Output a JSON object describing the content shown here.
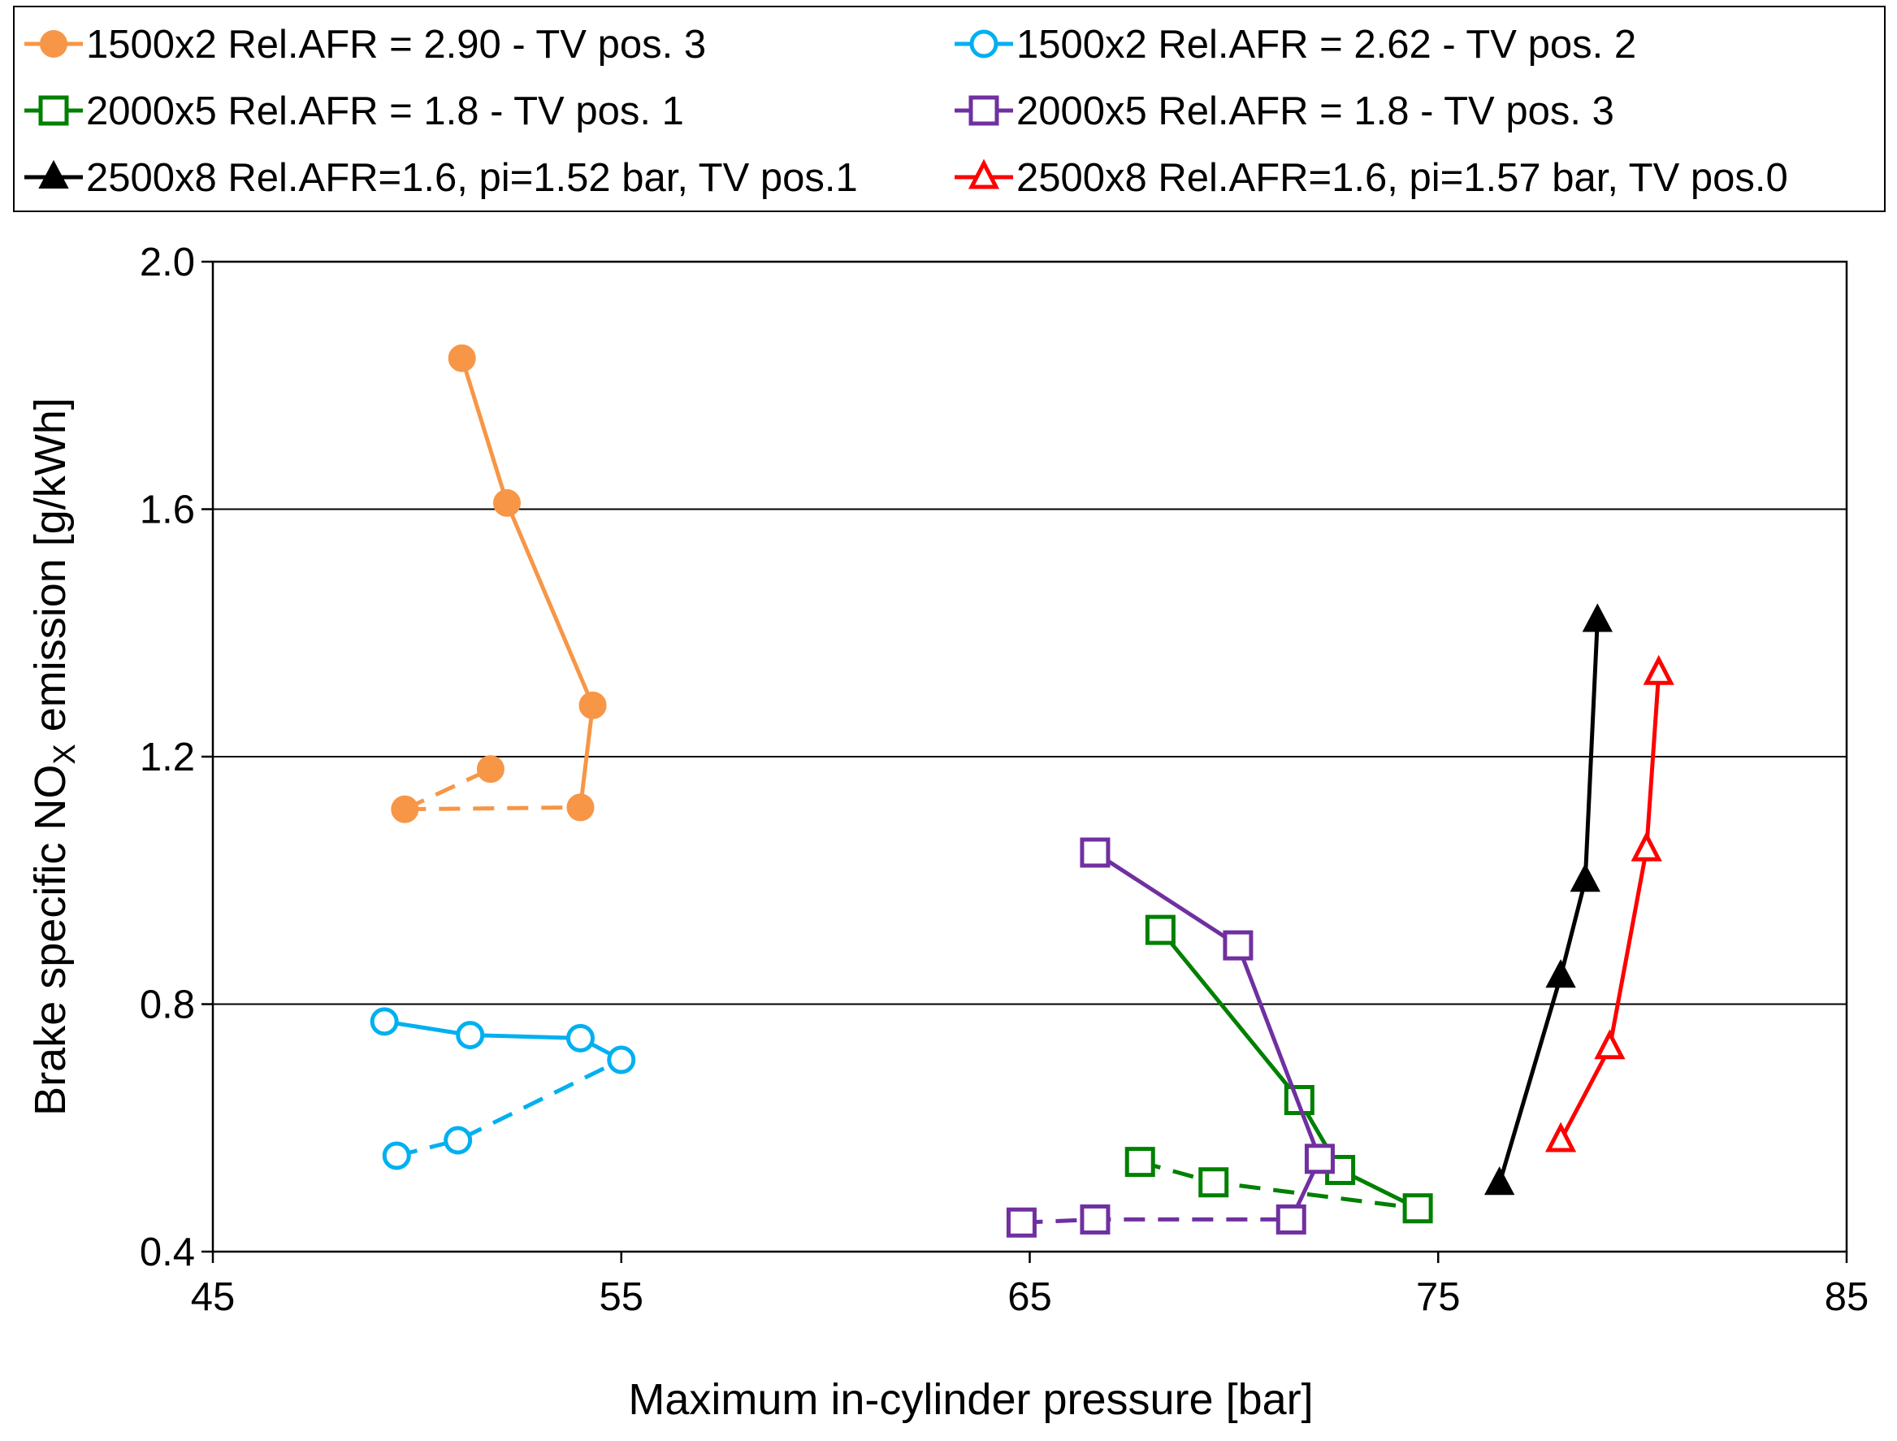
{
  "chart_data": {
    "type": "line",
    "title": "",
    "xlabel": "Maximum in-cylinder pressure [bar]",
    "ylabel": "Brake specific NOX emission [g/kWh]",
    "ylabel_parts": {
      "before": "Brake specific NO",
      "sub": "X",
      "after": " emission [g/kWh]"
    },
    "xlim": [
      45,
      85
    ],
    "ylim": [
      0.4,
      2.0
    ],
    "xticks": [
      45,
      55,
      65,
      75,
      85
    ],
    "yticks": [
      0.4,
      0.8,
      1.2,
      1.6,
      2.0
    ],
    "xtick_labels": [
      "45",
      "55",
      "65",
      "75",
      "85"
    ],
    "ytick_labels": [
      "0.4",
      "0.8",
      "1.2",
      "1.6",
      "2.0"
    ],
    "grid": "horizontal",
    "legend_position": "top",
    "series": [
      {
        "name": "1500x2 Rel.AFR = 2.90 - TV pos. 3",
        "color": "#F79646",
        "marker": "circle-filled",
        "solid": [
          [
            51.1,
            1.844
          ],
          [
            52.2,
            1.61
          ],
          [
            54.3,
            1.283
          ],
          [
            54.0,
            1.118
          ]
        ],
        "dashed": [
          [
            49.7,
            1.115
          ],
          [
            54.0,
            1.118
          ]
        ],
        "dashed_extra": [
          [
            49.7,
            1.115
          ],
          [
            51.8,
            1.18
          ]
        ]
      },
      {
        "name": "1500x2 Rel.AFR = 2.62 - TV pos. 2",
        "color": "#00B0F0",
        "marker": "circle-open",
        "solid": [
          [
            49.2,
            0.772
          ],
          [
            51.3,
            0.75
          ],
          [
            54.0,
            0.745
          ],
          [
            55.0,
            0.71
          ]
        ],
        "dashed": [
          [
            49.5,
            0.555
          ],
          [
            51.0,
            0.58
          ],
          [
            55.0,
            0.71
          ]
        ]
      },
      {
        "name": "2000x5 Rel.AFR = 1.8 - TV pos. 1",
        "color": "#008000",
        "marker": "square-open",
        "solid": [
          [
            68.2,
            0.92
          ],
          [
            71.6,
            0.645
          ],
          [
            72.6,
            0.532
          ],
          [
            74.5,
            0.47
          ]
        ],
        "dashed": [
          [
            67.7,
            0.545
          ],
          [
            69.5,
            0.512
          ],
          [
            74.5,
            0.47
          ]
        ]
      },
      {
        "name": "2000x5 Rel.AFR = 1.8 - TV pos. 3",
        "color": "#7030A0",
        "marker": "square-open",
        "solid": [
          [
            66.6,
            1.045
          ],
          [
            70.1,
            0.895
          ],
          [
            72.1,
            0.55
          ],
          [
            71.4,
            0.452
          ]
        ],
        "dashed": [
          [
            64.8,
            0.447
          ],
          [
            66.6,
            0.452
          ],
          [
            71.4,
            0.452
          ]
        ]
      },
      {
        "name": "2500x8 Rel.AFR=1.6, pi=1.52 bar, TV pos.1",
        "color": "#000000",
        "marker": "triangle-filled",
        "solid": [
          [
            76.5,
            0.51
          ],
          [
            78.0,
            0.845
          ],
          [
            78.6,
            1.0
          ],
          [
            78.9,
            1.42
          ]
        ],
        "dashed": []
      },
      {
        "name": "2500x8 Rel.AFR=1.6, pi=1.57 bar, TV pos.0",
        "color": "#FF0000",
        "marker": "triangle-open",
        "solid": [
          [
            78.0,
            0.58
          ],
          [
            79.2,
            0.73
          ],
          [
            80.1,
            1.05
          ],
          [
            80.4,
            1.335
          ]
        ],
        "dashed": []
      }
    ]
  }
}
